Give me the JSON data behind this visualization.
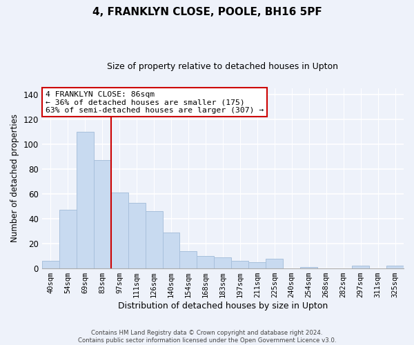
{
  "title": "4, FRANKLYN CLOSE, POOLE, BH16 5PF",
  "subtitle": "Size of property relative to detached houses in Upton",
  "xlabel": "Distribution of detached houses by size in Upton",
  "ylabel": "Number of detached properties",
  "categories": [
    "40sqm",
    "54sqm",
    "69sqm",
    "83sqm",
    "97sqm",
    "111sqm",
    "126sqm",
    "140sqm",
    "154sqm",
    "168sqm",
    "183sqm",
    "197sqm",
    "211sqm",
    "225sqm",
    "240sqm",
    "254sqm",
    "268sqm",
    "282sqm",
    "297sqm",
    "311sqm",
    "325sqm"
  ],
  "values": [
    6,
    47,
    110,
    87,
    61,
    53,
    46,
    29,
    14,
    10,
    9,
    6,
    5,
    8,
    0,
    1,
    0,
    0,
    2,
    0,
    2
  ],
  "bar_color": "#c8daf0",
  "bar_edge_color": "#a8c0dc",
  "vline_x": 3.5,
  "vline_color": "#cc0000",
  "annotation_text": "4 FRANKLYN CLOSE: 86sqm\n← 36% of detached houses are smaller (175)\n63% of semi-detached houses are larger (307) →",
  "annotation_box_color": "#ffffff",
  "annotation_box_edge_color": "#cc0000",
  "ylim": [
    0,
    145
  ],
  "footnote": "Contains HM Land Registry data © Crown copyright and database right 2024.\nContains public sector information licensed under the Open Government Licence v3.0.",
  "background_color": "#eef2fa"
}
